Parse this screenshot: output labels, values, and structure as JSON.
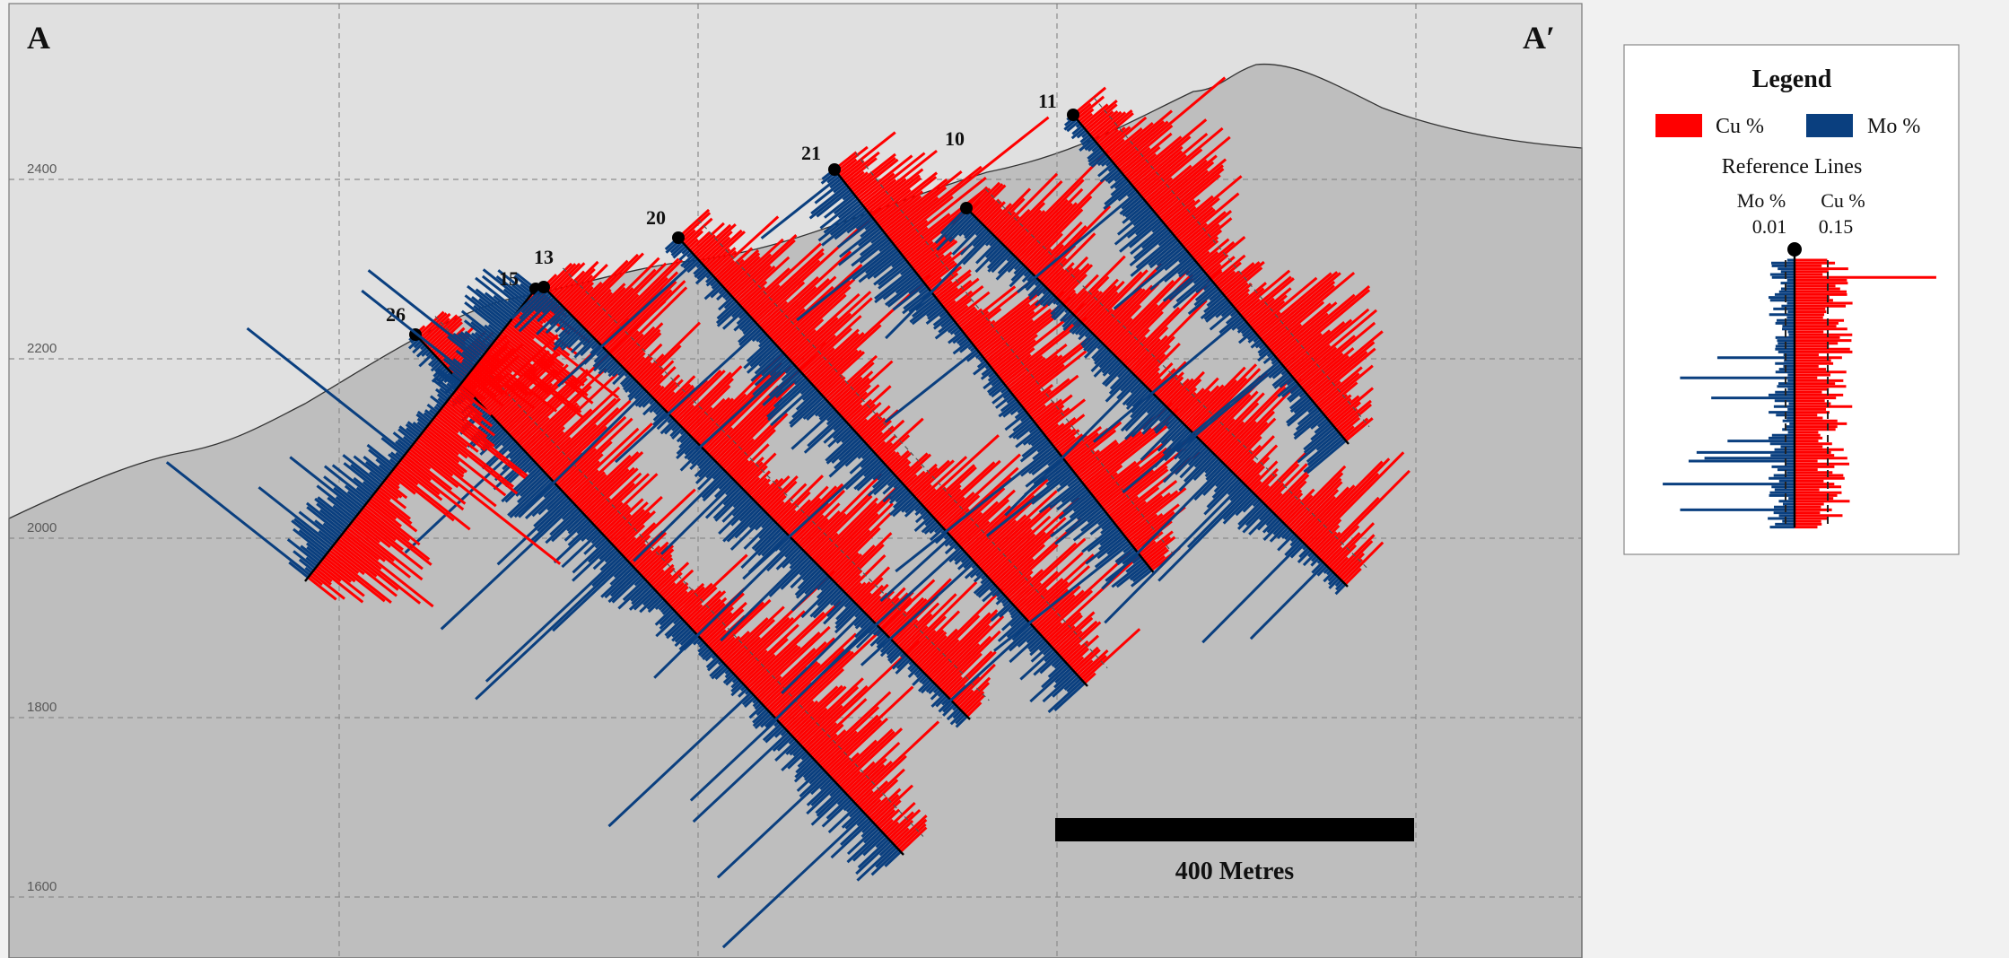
{
  "section": {
    "start_label": "A",
    "end_label": "A′",
    "elevations": [
      {
        "label": "2400",
        "value": 2400
      },
      {
        "label": "2200",
        "value": 2200
      },
      {
        "label": "2000",
        "value": 2000
      },
      {
        "label": "1800",
        "value": 1800
      },
      {
        "label": "1600",
        "value": 1600
      }
    ],
    "scale_bar_label": "400 Metres",
    "colors": {
      "cu": "#ff0000",
      "mo": "#0a3f7f",
      "sky": "#e0e0e0",
      "ground": "#bebebe",
      "grid": "#8c8c8c"
    }
  },
  "drillholes": [
    {
      "id": "26",
      "label": "26"
    },
    {
      "id": "15",
      "label": "15"
    },
    {
      "id": "13",
      "label": "13"
    },
    {
      "id": "20",
      "label": "20"
    },
    {
      "id": "21",
      "label": "21"
    },
    {
      "id": "10",
      "label": "10"
    },
    {
      "id": "11",
      "label": "11"
    }
  ],
  "legend": {
    "title": "Legend",
    "cu_label": "Cu %",
    "mo_label": "Mo %",
    "reference_title": "Reference Lines",
    "mo_ref_label": "Mo %",
    "mo_ref_value": "0.01",
    "cu_ref_label": "Cu %",
    "cu_ref_value": "0.15"
  }
}
